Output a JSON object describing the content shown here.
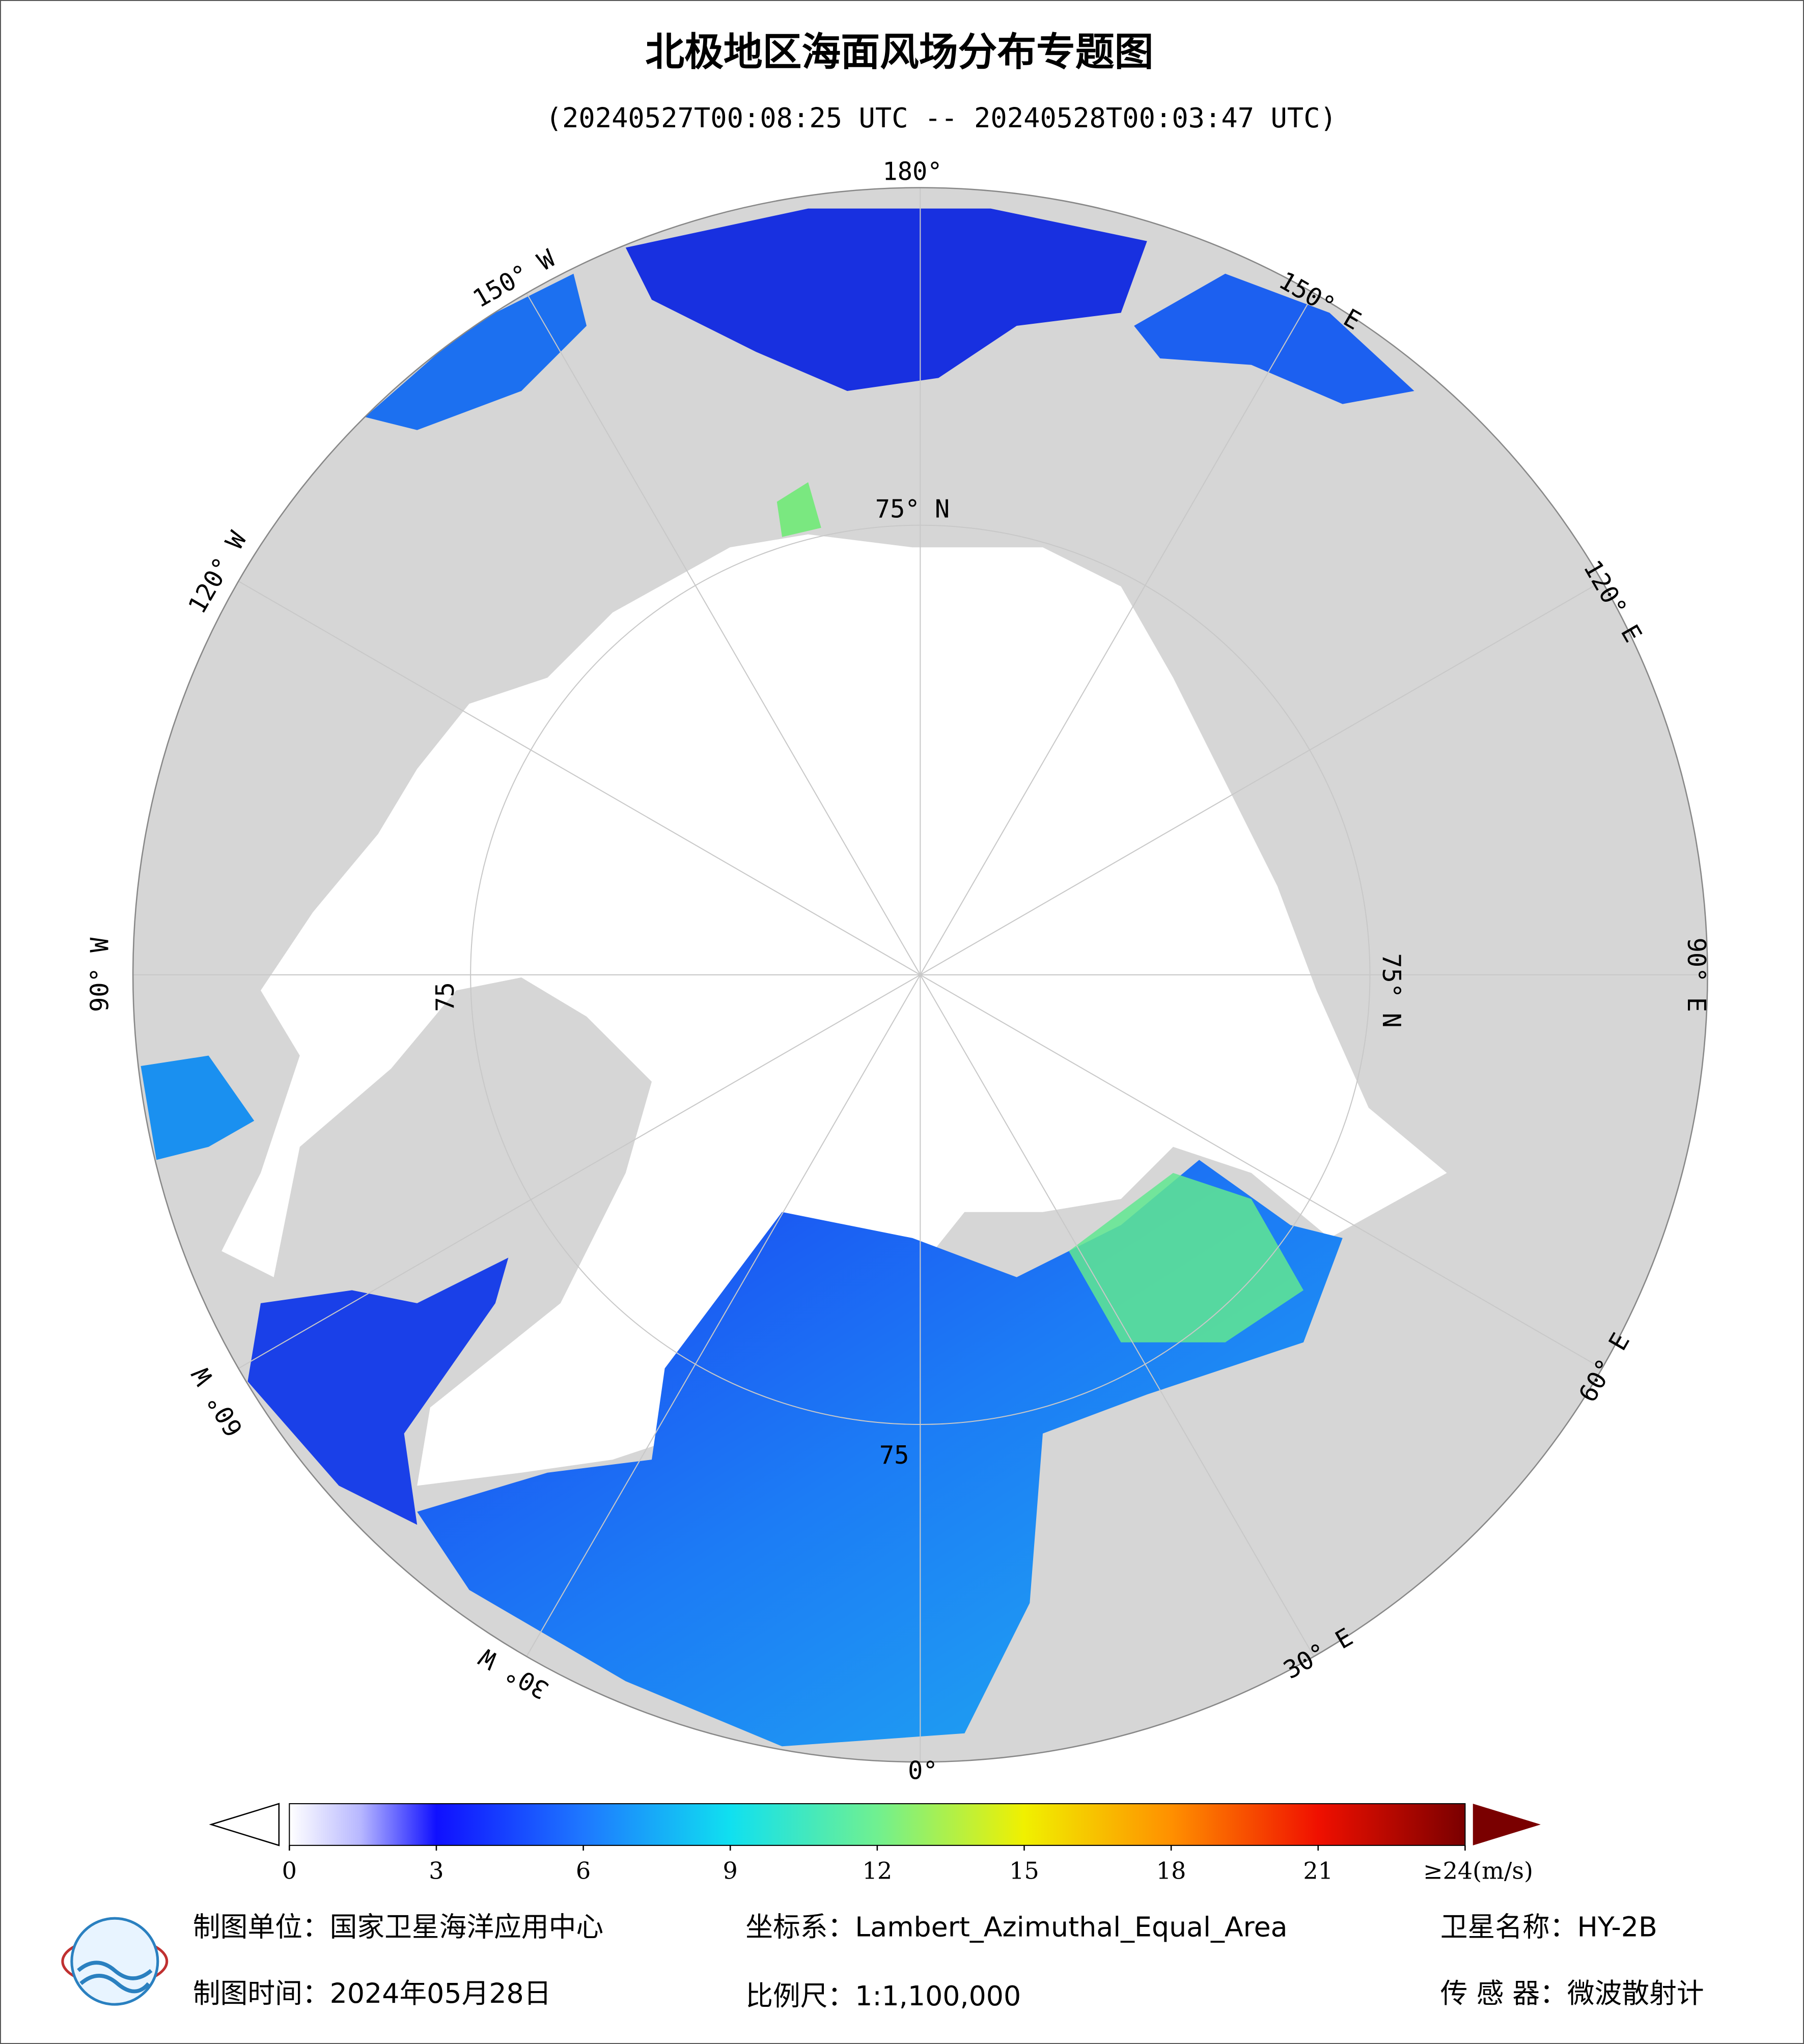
{
  "title": "北极地区海面风场分布专题图",
  "subtitle": "(20240527T00:08:25 UTC -- 20240528T00:03:47 UTC)",
  "graticule_labels": [
    "180°",
    "150° W",
    "120° W",
    "90° W",
    "60° W",
    "30° W",
    "0°",
    "30° E",
    "60° E",
    "90° E",
    "120° E",
    "150° E",
    "75° N",
    "75° N",
    "75",
    "75"
  ],
  "colorbar": {
    "range": [
      0,
      24
    ],
    "ticks": [
      0,
      3,
      6,
      9,
      12,
      15,
      18,
      21,
      {
        "value": 24,
        "label": "≥24(m/s)"
      }
    ]
  },
  "footer": {
    "unit": "制图单位：国家卫星海洋应用中心",
    "projection": "坐标系：Lambert_Azimuthal_Equal_Area",
    "satellite": "卫星名称：HY-2B",
    "date": "制图时间：2024年05月28日",
    "scale": "比例尺：1:1,100,000",
    "sensor": "传 感 器：微波散射计"
  }
}
